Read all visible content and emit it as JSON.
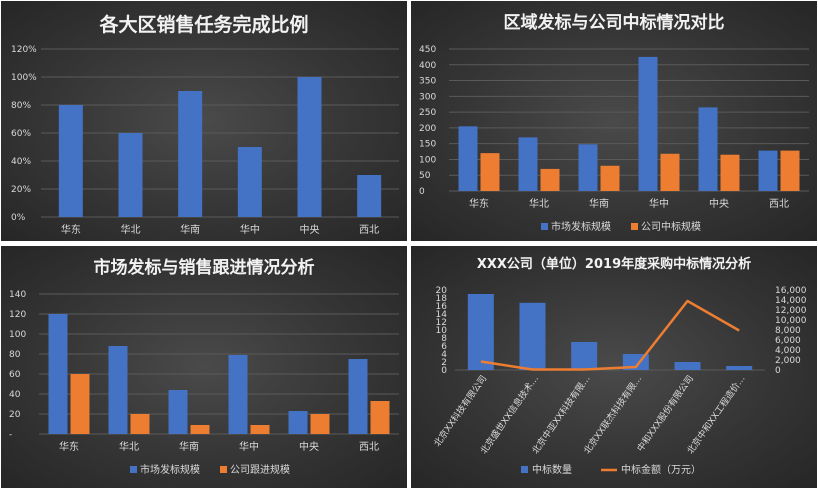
{
  "colors": {
    "blue": "#4472C4",
    "orange": "#ED7D31",
    "grid": "#5a5a5a",
    "text": "#d9d9d9",
    "title": "#f2f2f2"
  },
  "chart_data": [
    {
      "type": "bar",
      "title": "各大区销售任务完成比例",
      "categories": [
        "华东",
        "华北",
        "华南",
        "华中",
        "中央",
        "西北"
      ],
      "series": [
        {
          "values": [
            0.8,
            0.6,
            0.9,
            0.5,
            1.0,
            0.3
          ]
        }
      ],
      "ylim": [
        0,
        1.2
      ],
      "yticks": [
        "0%",
        "20%",
        "40%",
        "60%",
        "80%",
        "100%",
        "120%"
      ],
      "grid": true
    },
    {
      "type": "bar",
      "title": "区域发标与公司中标情况对比",
      "categories": [
        "华东",
        "华北",
        "华南",
        "华中",
        "中央",
        "西北"
      ],
      "series": [
        {
          "name": "市场发标规模",
          "values": [
            205,
            170,
            148,
            425,
            265,
            128
          ]
        },
        {
          "name": "公司中标规模",
          "values": [
            120,
            70,
            80,
            118,
            115,
            128
          ]
        }
      ],
      "ylim": [
        0,
        450
      ],
      "yticks": [
        "0",
        "50",
        "100",
        "150",
        "200",
        "250",
        "300",
        "350",
        "400",
        "450"
      ],
      "legend": "bottom",
      "grid": true
    },
    {
      "type": "bar",
      "title": "市场发标与销售跟进情况分析",
      "categories": [
        "华东",
        "华北",
        "华南",
        "华中",
        "中央",
        "西北"
      ],
      "series": [
        {
          "name": "市场发标规模",
          "values": [
            120,
            88,
            44,
            79,
            23,
            75
          ]
        },
        {
          "name": "公司跟进规模",
          "values": [
            60,
            20,
            9,
            9,
            20,
            33
          ]
        }
      ],
      "ylim": [
        0,
        140
      ],
      "yticks": [
        "-",
        "20",
        "40",
        "60",
        "80",
        "100",
        "120",
        "140"
      ],
      "legend": "bottom",
      "grid": true
    },
    {
      "type": "bar",
      "title": "XXX公司（单位）2019年度采购中标情况分析",
      "categories": [
        "北京XX科技有限公司",
        "北京盛世XX信息技术…",
        "北京中亚XX科技有限…",
        "北京XX联杰科技有限…",
        "中和XXX股份有限公司",
        "北京中和XX工程造价…"
      ],
      "series": [
        {
          "name": "中标数量",
          "kind": "bar",
          "axis": "left",
          "values": [
            19,
            16.8,
            7,
            4,
            2,
            1
          ]
        },
        {
          "name": "中标金额（万元）",
          "kind": "line",
          "axis": "right",
          "values": [
            1700,
            100,
            100,
            600,
            13800,
            7900
          ]
        }
      ],
      "ylim": [
        0,
        20
      ],
      "y2lim": [
        0,
        16000
      ],
      "yticks": [
        "0",
        "2",
        "4",
        "6",
        "8",
        "10",
        "12",
        "14",
        "16",
        "18",
        "20"
      ],
      "y2ticks": [
        "0",
        "2,000",
        "4,000",
        "6,000",
        "8,000",
        "10,000",
        "12,000",
        "14,000",
        "16,000"
      ],
      "legend": "bottom",
      "grid": false
    }
  ]
}
